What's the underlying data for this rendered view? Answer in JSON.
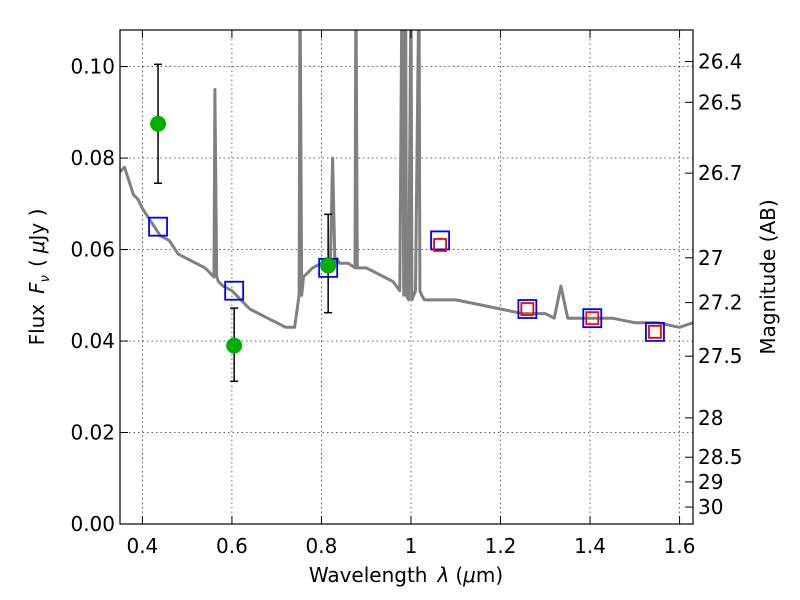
{
  "chart_data": {
    "type": "scatter",
    "xlabel_prefix": "Wavelength",
    "xlabel_symbol": "λ",
    "xlabel_unit_open": "(",
    "xlabel_unit_mu": "μ",
    "xlabel_unit_rest": "m)",
    "ylabel_prefix": "Flux",
    "ylabel_symbol": "F",
    "ylabel_sub": "ν",
    "ylabel_unit_open": "(",
    "ylabel_unit_mu": "μ",
    "ylabel_unit_rest": "Jy )",
    "y2label": "Magnitude (AB)",
    "xlim": [
      0.35,
      1.63
    ],
    "ylim": [
      0.0,
      0.108
    ],
    "grid": true,
    "x_ticks": [
      0.4,
      0.6,
      0.8,
      1.0,
      1.2,
      1.4,
      1.6
    ],
    "x_tick_labels": [
      "0.4",
      "0.6",
      "0.8",
      "1",
      "1.2",
      "1.4",
      "1.6"
    ],
    "y_ticks": [
      0.0,
      0.02,
      0.04,
      0.06,
      0.08,
      0.1
    ],
    "y_tick_labels": [
      "0.00",
      "0.02",
      "0.04",
      "0.06",
      "0.08",
      "0.10"
    ],
    "y2_ticks": [
      {
        "label": "26.4",
        "flux": 0.1011
      },
      {
        "label": "26.5",
        "flux": 0.0922
      },
      {
        "label": "26.7",
        "flux": 0.0767
      },
      {
        "label": "27",
        "flux": 0.0582
      },
      {
        "label": "27.2",
        "flux": 0.0484
      },
      {
        "label": "27.5",
        "flux": 0.0367
      },
      {
        "label": "28",
        "flux": 0.0232
      },
      {
        "label": "28.5",
        "flux": 0.0146
      },
      {
        "label": "29",
        "flux": 0.0092
      },
      {
        "label": "30",
        "flux": 0.0037
      }
    ],
    "series": [
      {
        "kind": "line",
        "color": "#808080",
        "x": [
          0.35,
          0.36,
          0.37,
          0.38,
          0.39,
          0.4,
          0.42,
          0.44,
          0.46,
          0.48,
          0.5,
          0.52,
          0.54,
          0.55,
          0.56,
          0.562,
          0.566,
          0.57,
          0.58,
          0.6,
          0.62,
          0.64,
          0.66,
          0.68,
          0.7,
          0.72,
          0.74,
          0.75,
          0.752,
          0.756,
          0.76,
          0.77,
          0.78,
          0.8,
          0.81,
          0.82,
          0.825,
          0.83,
          0.835,
          0.84,
          0.86,
          0.875,
          0.877,
          0.88,
          0.9,
          0.92,
          0.94,
          0.96,
          0.975,
          0.98,
          0.984,
          0.988,
          0.99,
          0.995,
          1.0,
          1.002,
          1.01,
          1.018,
          1.02,
          1.024,
          1.03,
          1.06,
          1.1,
          1.15,
          1.2,
          1.25,
          1.3,
          1.32,
          1.335,
          1.35,
          1.4,
          1.45,
          1.5,
          1.55,
          1.6,
          1.63
        ],
        "y": [
          0.077,
          0.078,
          0.075,
          0.072,
          0.071,
          0.069,
          0.066,
          0.063,
          0.062,
          0.059,
          0.058,
          0.057,
          0.056,
          0.055,
          0.054,
          0.095,
          0.054,
          0.053,
          0.052,
          0.051,
          0.049,
          0.047,
          0.046,
          0.045,
          0.044,
          0.043,
          0.043,
          0.05,
          0.12,
          0.05,
          0.054,
          0.055,
          0.056,
          0.057,
          0.058,
          0.057,
          0.08,
          0.057,
          0.058,
          0.057,
          0.057,
          0.056,
          0.12,
          0.056,
          0.056,
          0.055,
          0.054,
          0.053,
          0.051,
          0.12,
          0.05,
          0.12,
          0.05,
          0.049,
          0.12,
          0.049,
          0.051,
          0.12,
          0.051,
          0.05,
          0.049,
          0.049,
          0.049,
          0.048,
          0.047,
          0.046,
          0.046,
          0.045,
          0.052,
          0.045,
          0.045,
          0.045,
          0.044,
          0.044,
          0.043,
          0.044
        ]
      },
      {
        "kind": "scatter",
        "marker": "square",
        "color": "#0000ff",
        "x": [
          0.435,
          0.605,
          0.815,
          1.065,
          1.26,
          1.405,
          1.545
        ],
        "y": [
          0.065,
          0.051,
          0.056,
          0.062,
          0.047,
          0.045,
          0.042
        ]
      },
      {
        "kind": "scatter",
        "marker": "square",
        "color": "#ff0000",
        "x": [
          1.065,
          1.26,
          1.405,
          1.545
        ],
        "y": [
          0.061,
          0.047,
          0.045,
          0.042
        ]
      },
      {
        "kind": "errorbar",
        "marker": "circle",
        "color": "#00b000",
        "ecolor": "#000000",
        "x": [
          0.435,
          0.605,
          0.815
        ],
        "y": [
          0.0875,
          0.039,
          0.0565
        ],
        "yerr_low": [
          0.0745,
          0.0312,
          0.0462
        ],
        "yerr_high": [
          0.1005,
          0.0472,
          0.0677
        ]
      }
    ]
  }
}
